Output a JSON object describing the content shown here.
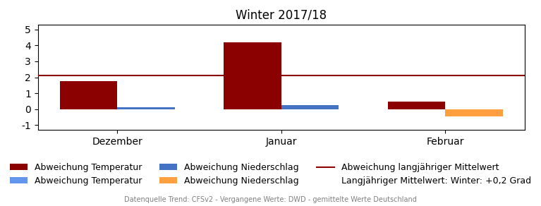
{
  "chart_data": {
    "type": "bar",
    "title": "Winter 2017/18",
    "categories": [
      "Dezember",
      "Januar",
      "Februar"
    ],
    "series": [
      {
        "name": "Abweichung Temperatur",
        "color": "#8B0000",
        "values": [
          1.75,
          4.2,
          0.45
        ]
      },
      {
        "name": "Abweichung Niederschlag",
        "colors": [
          "#4472C4",
          "#4472C4",
          "#FFA040"
        ],
        "values": [
          0.13,
          0.25,
          -0.45
        ]
      }
    ],
    "reference_lines": [
      {
        "name": "Abweichung langjähriger Mittelwert",
        "value": 2.1,
        "color": "#8B0000"
      }
    ],
    "ylim": [
      -1.3,
      5.3
    ],
    "yticks": [
      -1,
      0,
      1,
      2,
      3,
      4,
      5
    ],
    "legend": "lower center",
    "legend_entries": [
      {
        "label": "Abweichung Temperatur",
        "color": "#8B0000",
        "marker": "patch"
      },
      {
        "label": "Abweichung Niederschlag",
        "color": "#4472C4",
        "marker": "patch"
      },
      {
        "label": "Abweichung langjähriger Mittelwert",
        "color": "#8B0000",
        "marker": "line"
      },
      {
        "label": "Abweichung Temperatur",
        "color": "#6495ED",
        "marker": "patch"
      },
      {
        "label": "Abweichung Niederschlag",
        "color": "#FFA040",
        "marker": "patch"
      },
      {
        "label": "Langjähriger Mittelwert: Winter: +0,2 Grad"
      }
    ],
    "source": "Datenquelle Trend: CFSv2 - Vergangene Werte: DWD - gemittelte Werte Deutschland"
  }
}
